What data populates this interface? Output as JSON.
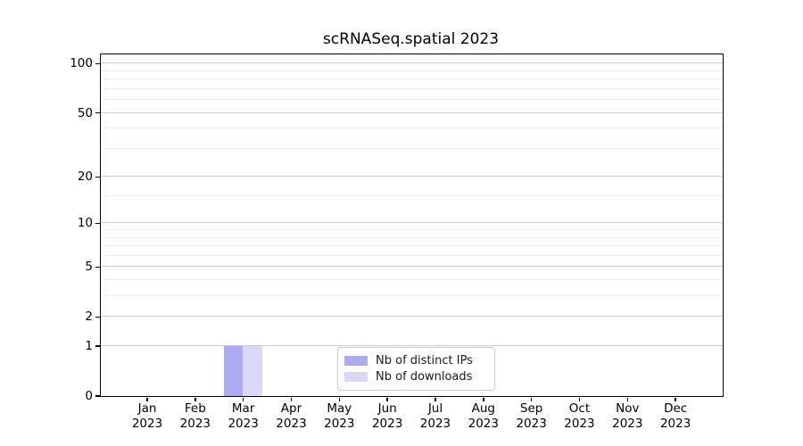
{
  "chart_data": {
    "type": "bar",
    "title": "scRNASeq.spatial 2023",
    "x_axis": {
      "months": [
        "Jan",
        "Feb",
        "Mar",
        "Apr",
        "May",
        "Jun",
        "Jul",
        "Aug",
        "Sep",
        "Oct",
        "Nov",
        "Dec"
      ],
      "year": "2023"
    },
    "y_axis": {
      "scale": "log1p",
      "major_ticks": [
        0,
        1,
        2,
        5,
        10,
        20,
        50,
        100
      ],
      "minor_gridlines": [
        3,
        4,
        6,
        7,
        8,
        9,
        15,
        30,
        40,
        60,
        70,
        80,
        90
      ],
      "ylim": [
        0,
        114
      ]
    },
    "series": [
      {
        "name": "Nb of distinct IPs",
        "color": "#ababf2",
        "values": [
          0,
          0,
          1,
          0,
          0,
          0,
          0,
          0,
          0,
          0,
          0,
          0
        ]
      },
      {
        "name": "Nb of downloads",
        "color": "#d9d9f7",
        "values": [
          0,
          0,
          1,
          0,
          0,
          0,
          0,
          0,
          0,
          0,
          0,
          0
        ]
      }
    ],
    "legend": {
      "position": "lower center"
    },
    "grid": true
  },
  "colors": {
    "major_grid": "#c8c8c8",
    "minor_grid": "#ebebeb",
    "axis": "#000000",
    "legend_border": "#cccccc"
  }
}
